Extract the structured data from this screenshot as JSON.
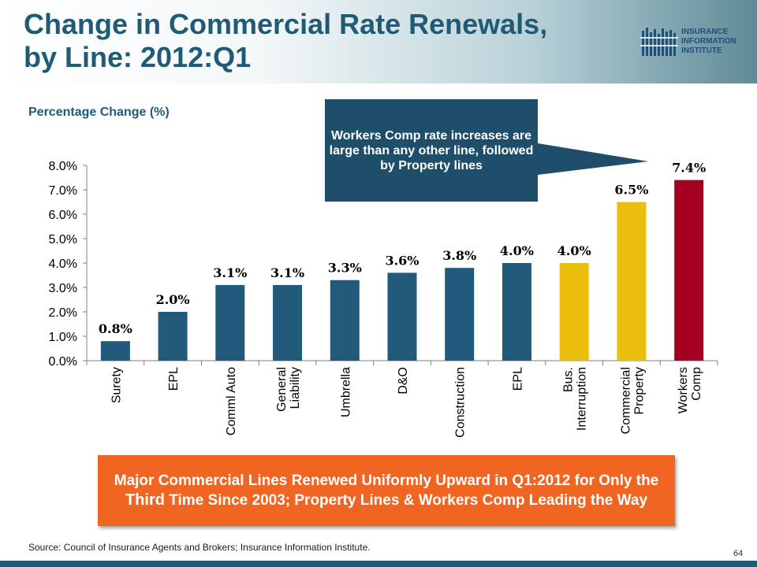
{
  "header": {
    "title_line1": "Change in Commercial Rate Renewals,",
    "title_line2": "by Line:  2012:Q1"
  },
  "logo": {
    "line1": "INSURANCE",
    "line2": "INFORMATION",
    "line3": "INSTITUTE",
    "color": "#1f4e79"
  },
  "callout": {
    "text": "Workers Comp rate increases are large than any other line, followed by Property lines",
    "color": "#1f4e6b"
  },
  "banner": {
    "text_before": "Major Commercial Lines Renewed Uniformly Upward in Q1:2012 for Only the ",
    "emphasis": "Third",
    "text_after": " Time Since 2003; Property Lines & Workers Comp Leading the Way",
    "color": "#f16522"
  },
  "footer": {
    "source": "Source: Council of Insurance Agents and Brokers; Insurance Information Institute.",
    "page_number": "64"
  },
  "chart_data": {
    "type": "bar",
    "title": "",
    "ylabel": "Percentage Change (%)",
    "xlabel": "",
    "ylim": [
      0,
      8
    ],
    "yticks": [
      "0.0%",
      "1.0%",
      "2.0%",
      "3.0%",
      "4.0%",
      "5.0%",
      "6.0%",
      "7.0%",
      "8.0%"
    ],
    "categories": [
      [
        "Surety"
      ],
      [
        "EPL"
      ],
      [
        "Comml Auto"
      ],
      [
        "General",
        "Liability"
      ],
      [
        "Umbrella"
      ],
      [
        "D&O"
      ],
      [
        "Construction"
      ],
      [
        "EPL"
      ],
      [
        "Bus.",
        "Interruption"
      ],
      [
        "Commercial",
        "Property"
      ],
      [
        "Workers",
        "Comp"
      ]
    ],
    "values": [
      0.8,
      2.0,
      3.1,
      3.1,
      3.3,
      3.6,
      3.8,
      4.0,
      4.0,
      6.5,
      7.4
    ],
    "data_labels": [
      "0.8%",
      "2.0%",
      "3.1%",
      "3.1%",
      "3.3%",
      "3.6%",
      "3.8%",
      "4.0%",
      "4.0%",
      "6.5%",
      "7.4%"
    ],
    "colors": [
      "#215a7b",
      "#215a7b",
      "#215a7b",
      "#215a7b",
      "#215a7b",
      "#215a7b",
      "#215a7b",
      "#215a7b",
      "#ebbd0c",
      "#ebbd0c",
      "#a50022"
    ],
    "grid": false,
    "legend": "none"
  }
}
